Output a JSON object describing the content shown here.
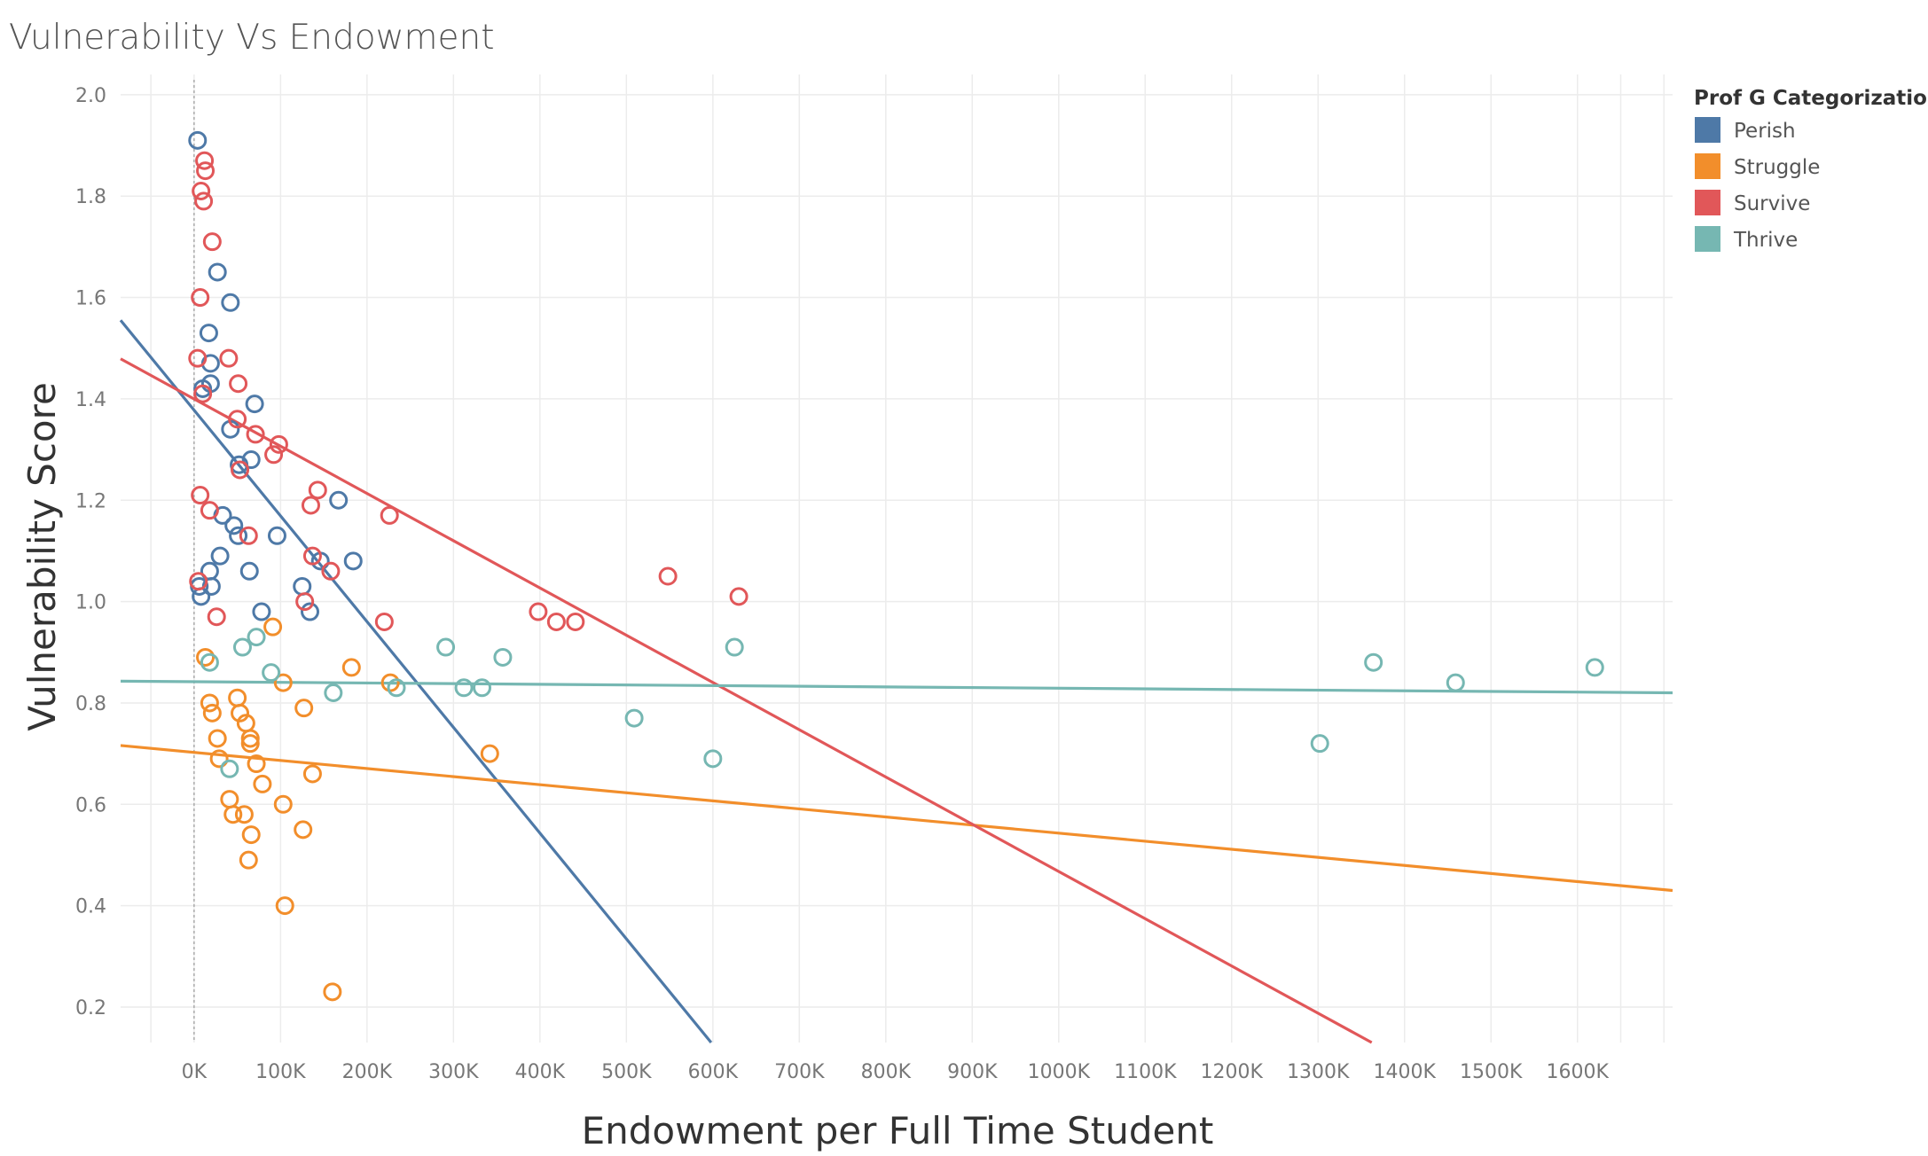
{
  "chart_data": {
    "type": "scatter",
    "title": "Vulnerability Vs Endowment",
    "xlabel": "Endowment per Full Time Student",
    "ylabel": "Vulnerability Score",
    "xlim": [
      -85000,
      1710000
    ],
    "ylim": [
      0.13,
      2.04
    ],
    "x_ticks": [
      0,
      100000,
      200000,
      300000,
      400000,
      500000,
      600000,
      700000,
      800000,
      900000,
      1000000,
      1100000,
      1200000,
      1300000,
      1400000,
      1500000,
      1600000
    ],
    "x_tick_labels": [
      "0K",
      "100K",
      "200K",
      "300K",
      "400K",
      "500K",
      "600K",
      "700K",
      "800K",
      "900K",
      "1000K",
      "1100K",
      "1200K",
      "1300K",
      "1400K",
      "1500K",
      "1600K"
    ],
    "y_ticks": [
      0.2,
      0.4,
      0.6,
      0.8,
      1.0,
      1.2,
      1.4,
      1.6,
      1.8,
      2.0
    ],
    "y_tick_labels": [
      "0.2",
      "0.4",
      "0.6",
      "0.8",
      "1.0",
      "1.2",
      "1.4",
      "1.6",
      "1.8",
      "2.0"
    ],
    "grid": true,
    "reference_line_x": 0,
    "legend": {
      "title": "Prof G Categorization",
      "position": "top-right"
    },
    "series": [
      {
        "name": "Perish",
        "color": "#4e79a7",
        "points": [
          [
            4000,
            1.91
          ],
          [
            27000,
            1.65
          ],
          [
            42000,
            1.59
          ],
          [
            17000,
            1.53
          ],
          [
            19000,
            1.47
          ],
          [
            19000,
            1.43
          ],
          [
            10000,
            1.42
          ],
          [
            70000,
            1.39
          ],
          [
            42000,
            1.34
          ],
          [
            66000,
            1.28
          ],
          [
            52000,
            1.27
          ],
          [
            167000,
            1.2
          ],
          [
            33000,
            1.17
          ],
          [
            46000,
            1.15
          ],
          [
            51000,
            1.13
          ],
          [
            96000,
            1.13
          ],
          [
            30000,
            1.09
          ],
          [
            146000,
            1.08
          ],
          [
            184000,
            1.08
          ],
          [
            18000,
            1.06
          ],
          [
            64000,
            1.06
          ],
          [
            20000,
            1.03
          ],
          [
            125000,
            1.03
          ],
          [
            6000,
            1.03
          ],
          [
            8000,
            1.01
          ],
          [
            78000,
            0.98
          ],
          [
            134000,
            0.98
          ]
        ],
        "trend": [
          [
            -85000,
            1.555
          ],
          [
            598000,
            0.13
          ]
        ]
      },
      {
        "name": "Struggle",
        "color": "#f28e2b",
        "points": [
          [
            91000,
            0.95
          ],
          [
            13000,
            0.89
          ],
          [
            182000,
            0.87
          ],
          [
            103000,
            0.84
          ],
          [
            227000,
            0.84
          ],
          [
            50000,
            0.81
          ],
          [
            18000,
            0.8
          ],
          [
            127000,
            0.79
          ],
          [
            21000,
            0.78
          ],
          [
            53000,
            0.78
          ],
          [
            60000,
            0.76
          ],
          [
            27000,
            0.73
          ],
          [
            65000,
            0.73
          ],
          [
            65000,
            0.72
          ],
          [
            342000,
            0.7
          ],
          [
            29000,
            0.69
          ],
          [
            72000,
            0.68
          ],
          [
            137000,
            0.66
          ],
          [
            79000,
            0.64
          ],
          [
            41000,
            0.61
          ],
          [
            103000,
            0.6
          ],
          [
            45000,
            0.58
          ],
          [
            58000,
            0.58
          ],
          [
            126000,
            0.55
          ],
          [
            66000,
            0.54
          ],
          [
            63000,
            0.49
          ],
          [
            105000,
            0.4
          ],
          [
            160000,
            0.23
          ]
        ],
        "trend": [
          [
            -85000,
            0.716
          ],
          [
            1710000,
            0.43
          ]
        ]
      },
      {
        "name": "Survive",
        "color": "#e15759",
        "points": [
          [
            12000,
            1.87
          ],
          [
            13000,
            1.85
          ],
          [
            8000,
            1.81
          ],
          [
            11000,
            1.79
          ],
          [
            21000,
            1.71
          ],
          [
            7000,
            1.6
          ],
          [
            4000,
            1.48
          ],
          [
            40000,
            1.48
          ],
          [
            51000,
            1.43
          ],
          [
            10000,
            1.41
          ],
          [
            50000,
            1.36
          ],
          [
            71000,
            1.33
          ],
          [
            98000,
            1.31
          ],
          [
            92000,
            1.29
          ],
          [
            53000,
            1.26
          ],
          [
            143000,
            1.22
          ],
          [
            7000,
            1.21
          ],
          [
            135000,
            1.19
          ],
          [
            18000,
            1.18
          ],
          [
            226000,
            1.17
          ],
          [
            63000,
            1.13
          ],
          [
            137000,
            1.09
          ],
          [
            158000,
            1.06
          ],
          [
            548000,
            1.05
          ],
          [
            5000,
            1.04
          ],
          [
            630000,
            1.01
          ],
          [
            128000,
            1.0
          ],
          [
            398000,
            0.98
          ],
          [
            26000,
            0.97
          ],
          [
            419000,
            0.96
          ],
          [
            441000,
            0.96
          ],
          [
            220000,
            0.96
          ]
        ],
        "trend": [
          [
            -85000,
            1.479
          ],
          [
            1362000,
            0.13
          ]
        ]
      },
      {
        "name": "Thrive",
        "color": "#76b7b2",
        "points": [
          [
            291000,
            0.91
          ],
          [
            56000,
            0.91
          ],
          [
            625000,
            0.91
          ],
          [
            72000,
            0.93
          ],
          [
            18000,
            0.88
          ],
          [
            357000,
            0.89
          ],
          [
            1364000,
            0.88
          ],
          [
            1620000,
            0.87
          ],
          [
            89000,
            0.86
          ],
          [
            1459000,
            0.84
          ],
          [
            312000,
            0.83
          ],
          [
            333000,
            0.83
          ],
          [
            234000,
            0.83
          ],
          [
            161000,
            0.82
          ],
          [
            509000,
            0.77
          ],
          [
            1302000,
            0.72
          ],
          [
            600000,
            0.69
          ],
          [
            41000,
            0.67
          ]
        ],
        "trend": [
          [
            -85000,
            0.843
          ],
          [
            1710000,
            0.82
          ]
        ]
      }
    ]
  }
}
